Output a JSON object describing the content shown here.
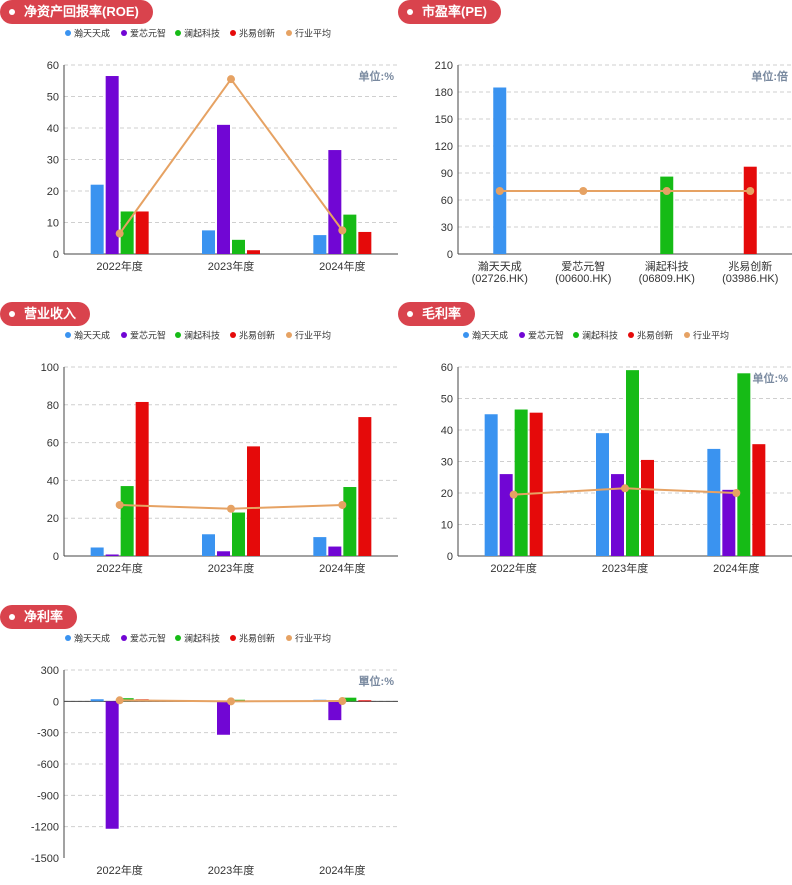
{
  "legend_labels": [
    "瀚天天成",
    "爱芯元智",
    "澜起科技",
    "兆易创新",
    "行业平均"
  ],
  "colors": {
    "series": [
      "#3a93f0",
      "#7106d4",
      "#16bb16",
      "#e50a0a"
    ],
    "average": "#e6a263",
    "pill": "#d9434d",
    "unit_text": "#7a8aa0"
  },
  "panels": [
    {
      "title": "净资产回报率(ROE)",
      "unit": "单位:%",
      "chart_data": {
        "type": "bar",
        "categories": [
          "2022年度",
          "2023年度",
          "2024年度"
        ],
        "series": [
          {
            "name": "瀚天天成",
            "values": [
              22,
              7.5,
              6
            ]
          },
          {
            "name": "爱芯元智",
            "values": [
              56.5,
              41,
              33
            ]
          },
          {
            "name": "澜起科技",
            "values": [
              13.5,
              4.5,
              12.5
            ]
          },
          {
            "name": "兆易创新",
            "values": [
              13.5,
              1.2,
              7
            ]
          }
        ],
        "average": {
          "name": "行业平均",
          "values": [
            6.5,
            55.5,
            7.5
          ]
        },
        "ylim": [
          0,
          60
        ],
        "yticks": [
          0,
          10,
          20,
          30,
          40,
          50,
          60
        ],
        "grid": true,
        "legend": "top"
      }
    },
    {
      "title": "市盈率(PE)",
      "unit": "单位:倍",
      "chart_data": {
        "type": "bar",
        "categories": [
          "瀚天天成\n(02726.HK)",
          "爱芯元智\n(00600.HK)",
          "澜起科技\n(06809.HK)",
          "兆易创新\n(03986.HK)"
        ],
        "bars": [
          185,
          null,
          86,
          97
        ],
        "average": {
          "name": "行业平均",
          "values": [
            70,
            70,
            70,
            70
          ]
        },
        "ylim": [
          0,
          210
        ],
        "yticks": [
          0,
          30,
          60,
          90,
          120,
          150,
          180,
          210
        ],
        "grid": true
      }
    },
    {
      "title": "营业收入",
      "unit": "",
      "chart_data": {
        "type": "bar",
        "categories": [
          "2022年度",
          "2023年度",
          "2024年度"
        ],
        "series": [
          {
            "name": "瀚天天成",
            "values": [
              4.5,
              11.5,
              10
            ]
          },
          {
            "name": "爱芯元智",
            "values": [
              0.8,
              2.5,
              5
            ]
          },
          {
            "name": "澜起科技",
            "values": [
              37,
              23,
              36.5
            ]
          },
          {
            "name": "兆易创新",
            "values": [
              81.5,
              58,
              73.5
            ]
          }
        ],
        "average": {
          "name": "行业平均",
          "values": [
            27,
            25,
            27
          ]
        },
        "ylim": [
          0,
          100
        ],
        "yticks": [
          0,
          20,
          40,
          60,
          80,
          100
        ],
        "grid": true,
        "legend": "top"
      }
    },
    {
      "title": "毛利率",
      "unit": "单位:%",
      "chart_data": {
        "type": "bar",
        "categories": [
          "2022年度",
          "2023年度",
          "2024年度"
        ],
        "series": [
          {
            "name": "瀚天天成",
            "values": [
              45,
              39,
              34
            ]
          },
          {
            "name": "爱芯元智",
            "values": [
              26,
              26,
              21
            ]
          },
          {
            "name": "澜起科技",
            "values": [
              46.5,
              59,
              58
            ]
          },
          {
            "name": "兆易创新",
            "values": [
              45.5,
              30.5,
              35.5
            ]
          }
        ],
        "average": {
          "name": "行业平均",
          "values": [
            19.5,
            21.5,
            20
          ]
        },
        "ylim": [
          0,
          60
        ],
        "yticks": [
          0,
          10,
          20,
          30,
          40,
          50,
          60
        ],
        "grid": true,
        "legend": "top"
      }
    },
    {
      "title": "净利率",
      "unit": "單位:%",
      "chart_data": {
        "type": "bar",
        "categories": [
          "2022年度",
          "2023年度",
          "2024年度"
        ],
        "series": [
          {
            "name": "瀚天天成",
            "values": [
              20,
              4,
              15
            ]
          },
          {
            "name": "爱芯元智",
            "values": [
              -1220,
              -320,
              -180
            ]
          },
          {
            "name": "澜起科技",
            "values": [
              30,
              15,
              35
            ]
          },
          {
            "name": "兆易创新",
            "values": [
              20,
              6,
              10
            ]
          }
        ],
        "average": {
          "name": "行业平均",
          "values": [
            10,
            0,
            3
          ]
        },
        "ylim": [
          -1500,
          300
        ],
        "yticks": [
          -1500,
          -1200,
          -900,
          -600,
          -300,
          0,
          300
        ],
        "grid": true,
        "legend": "top"
      }
    }
  ]
}
